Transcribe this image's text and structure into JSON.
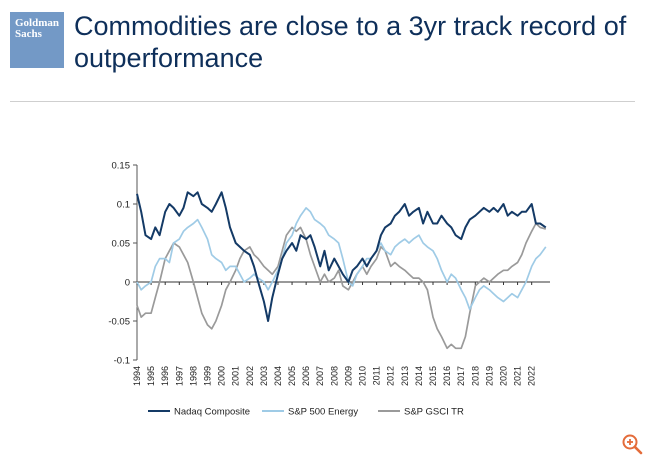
{
  "logo": {
    "line1": "Goldman",
    "line2": "Sachs"
  },
  "slide": {
    "title_line1": "Commodities are close to a 3yr track record of",
    "title_line2": "outperformance"
  },
  "colors": {
    "title": "#0e2f5a",
    "logo_bg": "#7399c6",
    "zoom": "#e46c3a"
  },
  "icons": {
    "zoom": "zoom-in-icon"
  },
  "chart_data": {
    "type": "line",
    "title": "",
    "xlabel": "",
    "ylabel": "",
    "ylim": [
      -0.1,
      0.15
    ],
    "xlim": [
      1994,
      2023.3
    ],
    "yticks": [
      -0.1,
      -0.05,
      0,
      0.05,
      0.1,
      0.15
    ],
    "ytick_labels": [
      "-0.1",
      "-0.05",
      "0",
      "0.05",
      "0.1",
      "0.15"
    ],
    "xticks": [
      "1994",
      "1995",
      "1996",
      "1997",
      "1998",
      "1999",
      "2000",
      "2001",
      "2002",
      "2003",
      "2004",
      "2005",
      "2006",
      "2007",
      "2008",
      "2009",
      "2010",
      "2011",
      "2012",
      "2013",
      "2014",
      "2015",
      "2016",
      "2017",
      "2018",
      "2019",
      "2020",
      "2021",
      "2022"
    ],
    "grid": false,
    "legend_position": "bottom",
    "series": [
      {
        "name": "Nadaq Composite",
        "color": "#143a66",
        "points": [
          [
            1994,
            0.113
          ],
          [
            1994.3,
            0.09
          ],
          [
            1994.6,
            0.06
          ],
          [
            1995,
            0.055
          ],
          [
            1995.3,
            0.07
          ],
          [
            1995.6,
            0.06
          ],
          [
            1996,
            0.09
          ],
          [
            1996.3,
            0.1
          ],
          [
            1996.6,
            0.095
          ],
          [
            1997,
            0.085
          ],
          [
            1997.3,
            0.095
          ],
          [
            1997.6,
            0.115
          ],
          [
            1998,
            0.11
          ],
          [
            1998.3,
            0.115
          ],
          [
            1998.6,
            0.1
          ],
          [
            1999,
            0.095
          ],
          [
            1999.3,
            0.09
          ],
          [
            1999.6,
            0.1
          ],
          [
            2000,
            0.115
          ],
          [
            2000.3,
            0.095
          ],
          [
            2000.6,
            0.07
          ],
          [
            2001,
            0.05
          ],
          [
            2001.3,
            0.045
          ],
          [
            2001.6,
            0.04
          ],
          [
            2002,
            0.035
          ],
          [
            2002.3,
            0.02
          ],
          [
            2002.6,
            0.0
          ],
          [
            2003,
            -0.025
          ],
          [
            2003.3,
            -0.05
          ],
          [
            2003.6,
            -0.02
          ],
          [
            2004,
            0.01
          ],
          [
            2004.3,
            0.03
          ],
          [
            2004.6,
            0.04
          ],
          [
            2005,
            0.05
          ],
          [
            2005.3,
            0.04
          ],
          [
            2005.6,
            0.06
          ],
          [
            2006,
            0.055
          ],
          [
            2006.3,
            0.06
          ],
          [
            2006.6,
            0.045
          ],
          [
            2007,
            0.02
          ],
          [
            2007.3,
            0.04
          ],
          [
            2007.6,
            0.015
          ],
          [
            2008,
            0.03
          ],
          [
            2008.3,
            0.02
          ],
          [
            2008.6,
            0.01
          ],
          [
            2009,
            0.0
          ],
          [
            2009.3,
            0.015
          ],
          [
            2009.6,
            0.02
          ],
          [
            2010,
            0.03
          ],
          [
            2010.3,
            0.02
          ],
          [
            2010.6,
            0.03
          ],
          [
            2011,
            0.04
          ],
          [
            2011.3,
            0.06
          ],
          [
            2011.6,
            0.07
          ],
          [
            2012,
            0.075
          ],
          [
            2012.3,
            0.085
          ],
          [
            2012.6,
            0.09
          ],
          [
            2013,
            0.1
          ],
          [
            2013.3,
            0.085
          ],
          [
            2013.6,
            0.09
          ],
          [
            2014,
            0.095
          ],
          [
            2014.3,
            0.075
          ],
          [
            2014.6,
            0.09
          ],
          [
            2015,
            0.075
          ],
          [
            2015.3,
            0.075
          ],
          [
            2015.6,
            0.085
          ],
          [
            2016,
            0.075
          ],
          [
            2016.3,
            0.07
          ],
          [
            2016.6,
            0.06
          ],
          [
            2017,
            0.055
          ],
          [
            2017.3,
            0.07
          ],
          [
            2017.6,
            0.08
          ],
          [
            2018,
            0.085
          ],
          [
            2018.3,
            0.09
          ],
          [
            2018.6,
            0.095
          ],
          [
            2019,
            0.09
          ],
          [
            2019.3,
            0.095
          ],
          [
            2019.6,
            0.09
          ],
          [
            2020,
            0.1
          ],
          [
            2020.3,
            0.085
          ],
          [
            2020.6,
            0.09
          ],
          [
            2021,
            0.085
          ],
          [
            2021.3,
            0.09
          ],
          [
            2021.6,
            0.09
          ],
          [
            2022,
            0.1
          ],
          [
            2022.3,
            0.075
          ],
          [
            2022.6,
            0.075
          ],
          [
            2023,
            0.07
          ]
        ]
      },
      {
        "name": "S&P 500 Energy",
        "color": "#9fcbe6",
        "points": [
          [
            1994,
            0.0
          ],
          [
            1994.3,
            -0.01
          ],
          [
            1994.6,
            -0.005
          ],
          [
            1995,
            0.0
          ],
          [
            1995.3,
            0.02
          ],
          [
            1995.6,
            0.03
          ],
          [
            1996,
            0.03
          ],
          [
            1996.3,
            0.025
          ],
          [
            1996.6,
            0.05
          ],
          [
            1997,
            0.055
          ],
          [
            1997.3,
            0.065
          ],
          [
            1997.6,
            0.07
          ],
          [
            1998,
            0.075
          ],
          [
            1998.3,
            0.08
          ],
          [
            1998.6,
            0.07
          ],
          [
            1999,
            0.055
          ],
          [
            1999.3,
            0.035
          ],
          [
            1999.6,
            0.03
          ],
          [
            2000,
            0.025
          ],
          [
            2000.3,
            0.015
          ],
          [
            2000.6,
            0.02
          ],
          [
            2001,
            0.02
          ],
          [
            2001.3,
            0.01
          ],
          [
            2001.6,
            0.0
          ],
          [
            2002,
            0.005
          ],
          [
            2002.3,
            0.01
          ],
          [
            2002.6,
            0.005
          ],
          [
            2003,
            0.0
          ],
          [
            2003.3,
            -0.01
          ],
          [
            2003.6,
            0.0
          ],
          [
            2004,
            0.015
          ],
          [
            2004.3,
            0.03
          ],
          [
            2004.6,
            0.05
          ],
          [
            2005,
            0.06
          ],
          [
            2005.3,
            0.075
          ],
          [
            2005.6,
            0.085
          ],
          [
            2006,
            0.095
          ],
          [
            2006.3,
            0.09
          ],
          [
            2006.6,
            0.08
          ],
          [
            2007,
            0.075
          ],
          [
            2007.3,
            0.07
          ],
          [
            2007.6,
            0.06
          ],
          [
            2008,
            0.055
          ],
          [
            2008.3,
            0.05
          ],
          [
            2008.6,
            0.03
          ],
          [
            2009,
            0.0
          ],
          [
            2009.3,
            -0.005
          ],
          [
            2009.6,
            0.01
          ],
          [
            2010,
            0.02
          ],
          [
            2010.3,
            0.03
          ],
          [
            2010.6,
            0.03
          ],
          [
            2011,
            0.04
          ],
          [
            2011.3,
            0.05
          ],
          [
            2011.6,
            0.04
          ],
          [
            2012,
            0.035
          ],
          [
            2012.3,
            0.045
          ],
          [
            2012.6,
            0.05
          ],
          [
            2013,
            0.055
          ],
          [
            2013.3,
            0.05
          ],
          [
            2013.6,
            0.055
          ],
          [
            2014,
            0.06
          ],
          [
            2014.3,
            0.05
          ],
          [
            2014.6,
            0.045
          ],
          [
            2015,
            0.04
          ],
          [
            2015.3,
            0.03
          ],
          [
            2015.6,
            0.015
          ],
          [
            2016,
            0.0
          ],
          [
            2016.3,
            0.01
          ],
          [
            2016.6,
            0.005
          ],
          [
            2017,
            -0.01
          ],
          [
            2017.3,
            -0.02
          ],
          [
            2017.6,
            -0.035
          ],
          [
            2018,
            -0.02
          ],
          [
            2018.3,
            -0.01
          ],
          [
            2018.6,
            -0.005
          ],
          [
            2019,
            -0.01
          ],
          [
            2019.3,
            -0.015
          ],
          [
            2019.6,
            -0.02
          ],
          [
            2020,
            -0.025
          ],
          [
            2020.3,
            -0.02
          ],
          [
            2020.6,
            -0.015
          ],
          [
            2021,
            -0.02
          ],
          [
            2021.3,
            -0.01
          ],
          [
            2021.6,
            0.0
          ],
          [
            2022,
            0.02
          ],
          [
            2022.3,
            0.03
          ],
          [
            2022.6,
            0.035
          ],
          [
            2023,
            0.045
          ]
        ]
      },
      {
        "name": "S&P GSCI TR",
        "color": "#9a9a9a",
        "points": [
          [
            1994,
            -0.03
          ],
          [
            1994.3,
            -0.045
          ],
          [
            1994.6,
            -0.04
          ],
          [
            1995,
            -0.04
          ],
          [
            1995.3,
            -0.02
          ],
          [
            1995.6,
            0.0
          ],
          [
            1996,
            0.03
          ],
          [
            1996.3,
            0.04
          ],
          [
            1996.6,
            0.05
          ],
          [
            1997,
            0.045
          ],
          [
            1997.3,
            0.035
          ],
          [
            1997.6,
            0.025
          ],
          [
            1998,
            0.0
          ],
          [
            1998.3,
            -0.02
          ],
          [
            1998.6,
            -0.04
          ],
          [
            1999,
            -0.055
          ],
          [
            1999.3,
            -0.06
          ],
          [
            1999.6,
            -0.05
          ],
          [
            2000,
            -0.03
          ],
          [
            2000.3,
            -0.01
          ],
          [
            2000.6,
            0.0
          ],
          [
            2001,
            0.015
          ],
          [
            2001.3,
            0.03
          ],
          [
            2001.6,
            0.04
          ],
          [
            2002,
            0.045
          ],
          [
            2002.3,
            0.035
          ],
          [
            2002.6,
            0.03
          ],
          [
            2003,
            0.02
          ],
          [
            2003.3,
            0.015
          ],
          [
            2003.6,
            0.01
          ],
          [
            2004,
            0.02
          ],
          [
            2004.3,
            0.04
          ],
          [
            2004.6,
            0.06
          ],
          [
            2005,
            0.07
          ],
          [
            2005.3,
            0.065
          ],
          [
            2005.6,
            0.07
          ],
          [
            2006,
            0.055
          ],
          [
            2006.3,
            0.035
          ],
          [
            2006.6,
            0.02
          ],
          [
            2007,
            0.0
          ],
          [
            2007.3,
            0.01
          ],
          [
            2007.6,
            0.0
          ],
          [
            2008,
            0.005
          ],
          [
            2008.3,
            0.015
          ],
          [
            2008.6,
            -0.005
          ],
          [
            2009,
            -0.01
          ],
          [
            2009.3,
            0.0
          ],
          [
            2009.6,
            0.01
          ],
          [
            2010,
            0.02
          ],
          [
            2010.3,
            0.01
          ],
          [
            2010.6,
            0.02
          ],
          [
            2011,
            0.03
          ],
          [
            2011.3,
            0.045
          ],
          [
            2011.6,
            0.04
          ],
          [
            2012,
            0.02
          ],
          [
            2012.3,
            0.025
          ],
          [
            2012.6,
            0.02
          ],
          [
            2013,
            0.015
          ],
          [
            2013.3,
            0.01
          ],
          [
            2013.6,
            0.005
          ],
          [
            2014,
            0.005
          ],
          [
            2014.3,
            0.0
          ],
          [
            2014.6,
            -0.01
          ],
          [
            2015,
            -0.045
          ],
          [
            2015.3,
            -0.06
          ],
          [
            2015.6,
            -0.07
          ],
          [
            2016,
            -0.085
          ],
          [
            2016.3,
            -0.08
          ],
          [
            2016.6,
            -0.085
          ],
          [
            2017,
            -0.085
          ],
          [
            2017.3,
            -0.07
          ],
          [
            2017.6,
            -0.04
          ],
          [
            2018,
            -0.005
          ],
          [
            2018.3,
            0.0
          ],
          [
            2018.6,
            0.005
          ],
          [
            2019,
            0.0
          ],
          [
            2019.3,
            0.005
          ],
          [
            2019.6,
            0.01
          ],
          [
            2020,
            0.015
          ],
          [
            2020.3,
            0.015
          ],
          [
            2020.6,
            0.02
          ],
          [
            2021,
            0.025
          ],
          [
            2021.3,
            0.035
          ],
          [
            2021.6,
            0.05
          ],
          [
            2022,
            0.065
          ],
          [
            2022.3,
            0.075
          ],
          [
            2022.6,
            0.07
          ],
          [
            2023,
            0.068
          ]
        ]
      }
    ]
  }
}
